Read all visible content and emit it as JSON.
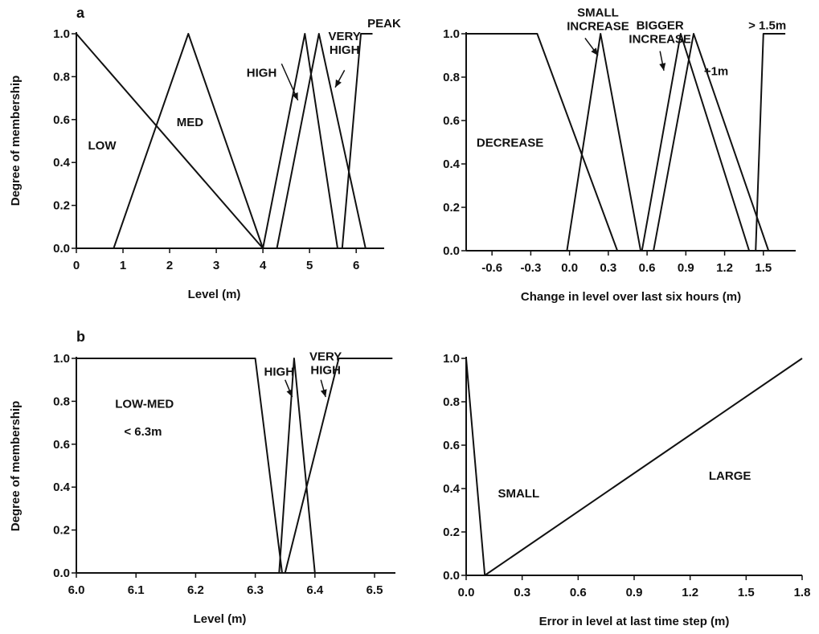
{
  "panel_labels": [
    "a",
    "b"
  ],
  "chart_data": [
    {
      "type": "line",
      "panel": "a",
      "xlabel": "Level (m)",
      "ylabel": "Degree of membership",
      "xlim": [
        0,
        6.6
      ],
      "ylim": [
        0,
        1.0
      ],
      "xticks": [
        0,
        1,
        2,
        3,
        4,
        5,
        6
      ],
      "xtick_labels": [
        "0",
        "1",
        "2",
        "3",
        "4",
        "5",
        "6"
      ],
      "yticks": [
        0,
        0.2,
        0.4,
        0.6,
        0.8,
        1.0
      ],
      "ytick_labels": [
        "0.0",
        "0.2",
        "0.4",
        "0.6",
        "0.8",
        "1.0"
      ],
      "series": [
        {
          "name": "LOW",
          "x": [
            0,
            4.0
          ],
          "y": [
            1.0,
            0.0
          ]
        },
        {
          "name": "MED",
          "x": [
            0.8,
            2.4,
            4.0
          ],
          "y": [
            0.0,
            1.0,
            0.0
          ]
        },
        {
          "name": "HIGH",
          "x": [
            4.0,
            4.9,
            5.6
          ],
          "y": [
            0.0,
            1.0,
            0.0
          ]
        },
        {
          "name": "VERY HIGH",
          "x": [
            4.3,
            5.2,
            6.2
          ],
          "y": [
            0.0,
            1.0,
            0.0
          ]
        },
        {
          "name": "PEAK",
          "x": [
            5.7,
            6.1,
            6.35
          ],
          "y": [
            0.0,
            1.0,
            1.0
          ]
        }
      ],
      "annotations": [
        {
          "lines": [
            "LOW"
          ],
          "x": 0.25,
          "y": 0.46,
          "anchor": "start"
        },
        {
          "lines": [
            "MED"
          ],
          "x": 2.15,
          "y": 0.57,
          "anchor": "start"
        },
        {
          "lines": [
            "HIGH"
          ],
          "x": 3.65,
          "y": 0.8,
          "anchor": "start"
        },
        {
          "lines": [
            "VERY",
            "HIGH"
          ],
          "x": 5.75,
          "y": 0.97,
          "anchor": "middle"
        },
        {
          "lines": [
            "PEAK"
          ],
          "x": 6.6,
          "y": 1.03,
          "anchor": "middle"
        }
      ],
      "arrows": [
        {
          "from": [
            4.4,
            0.86
          ],
          "to": [
            4.75,
            0.69
          ]
        },
        {
          "from": [
            5.75,
            0.83
          ],
          "to": [
            5.55,
            0.75
          ]
        }
      ]
    },
    {
      "type": "line",
      "panel": "a",
      "xlabel": "Change in level over last six hours  (m)",
      "ylabel": "",
      "xlim": [
        -0.8,
        1.75
      ],
      "ylim": [
        0,
        1.0
      ],
      "xticks": [
        -0.6,
        -0.3,
        0,
        0.3,
        0.6,
        0.9,
        1.2,
        1.5
      ],
      "xtick_labels": [
        "-0.6",
        "-0.3",
        "0.0",
        "0.3",
        "0.6",
        "0.9",
        "1.2",
        "1.5"
      ],
      "yticks": [
        0,
        0.2,
        0.4,
        0.6,
        0.8,
        1.0
      ],
      "ytick_labels": [
        "0.0",
        "0.2",
        "0.4",
        "0.6",
        "0.8",
        "1.0"
      ],
      "series": [
        {
          "name": "DECREASE",
          "x": [
            -0.8,
            -0.25,
            0.37
          ],
          "y": [
            1.0,
            1.0,
            0.0
          ]
        },
        {
          "name": "SMALL INCREASE",
          "x": [
            -0.02,
            0.24,
            0.55
          ],
          "y": [
            0.0,
            1.0,
            0.0
          ]
        },
        {
          "name": "BIGGER INCREASE",
          "x": [
            0.56,
            0.86,
            1.39
          ],
          "y": [
            0.0,
            1.0,
            0.0
          ]
        },
        {
          "name": "+1m",
          "x": [
            0.65,
            0.96,
            1.54
          ],
          "y": [
            0.0,
            1.0,
            0.0
          ]
        },
        {
          "name": "> 1.5m",
          "x": [
            1.44,
            1.5,
            1.67
          ],
          "y": [
            0.0,
            1.0,
            1.0
          ]
        }
      ],
      "annotations": [
        {
          "lines": [
            "SMALL",
            "INCREASE"
          ],
          "x": 0.22,
          "y": 1.08,
          "anchor": "middle"
        },
        {
          "lines": [
            "BIGGER",
            "INCREASE"
          ],
          "x": 0.7,
          "y": 1.02,
          "anchor": "middle"
        },
        {
          "lines": [
            "DECREASE"
          ],
          "x": -0.72,
          "y": 0.48,
          "anchor": "start"
        },
        {
          "lines": [
            "+1m"
          ],
          "x": 1.04,
          "y": 0.81,
          "anchor": "start"
        },
        {
          "lines": [
            "> 1.5m"
          ],
          "x": 1.53,
          "y": 1.02,
          "anchor": "middle"
        }
      ],
      "arrows": [
        {
          "from": [
            0.12,
            0.98
          ],
          "to": [
            0.22,
            0.9
          ]
        },
        {
          "from": [
            0.7,
            0.92
          ],
          "to": [
            0.73,
            0.83
          ]
        }
      ]
    },
    {
      "type": "line",
      "panel": "b",
      "xlabel": "Level (m)",
      "ylabel": "Degree of membership",
      "xlim": [
        6.0,
        6.535
      ],
      "ylim": [
        0,
        1.0
      ],
      "xticks": [
        6.0,
        6.1,
        6.2,
        6.3,
        6.4,
        6.5
      ],
      "xtick_labels": [
        "6.0",
        "6.1",
        "6.2",
        "6.3",
        "6.4",
        "6.5"
      ],
      "yticks": [
        0,
        0.2,
        0.4,
        0.6,
        0.8,
        1.0
      ],
      "ytick_labels": [
        "0.0",
        "0.2",
        "0.4",
        "0.6",
        "0.8",
        "1.0"
      ],
      "series": [
        {
          "name": "LOW-MED",
          "x": [
            6.0,
            6.3,
            6.345
          ],
          "y": [
            1.0,
            1.0,
            0.0
          ]
        },
        {
          "name": "HIGH",
          "x": [
            6.34,
            6.365,
            6.4
          ],
          "y": [
            0.0,
            1.0,
            0.0
          ]
        },
        {
          "name": "VERY HIGH",
          "x": [
            6.35,
            6.44,
            6.53
          ],
          "y": [
            0.0,
            1.0,
            1.0
          ]
        }
      ],
      "annotations": [
        {
          "lines": [
            "LOW-MED"
          ],
          "x": 6.065,
          "y": 0.77,
          "anchor": "start"
        },
        {
          "lines": [
            "< 6.3m"
          ],
          "x": 6.08,
          "y": 0.64,
          "anchor": "start"
        },
        {
          "lines": [
            "HIGH"
          ],
          "x": 6.34,
          "y": 0.92,
          "anchor": "middle"
        },
        {
          "lines": [
            "VERY",
            "HIGH"
          ],
          "x": 6.418,
          "y": 0.99,
          "anchor": "middle"
        }
      ],
      "arrows": [
        {
          "from": [
            6.35,
            0.9
          ],
          "to": [
            6.362,
            0.82
          ]
        },
        {
          "from": [
            6.41,
            0.9
          ],
          "to": [
            6.418,
            0.82
          ]
        }
      ]
    },
    {
      "type": "line",
      "panel": "b",
      "xlabel": "Error in level at last time step  (m)",
      "ylabel": "",
      "xlim": [
        0,
        1.8
      ],
      "ylim": [
        0,
        1.0
      ],
      "xticks": [
        0,
        0.3,
        0.6,
        0.9,
        1.2,
        1.5,
        1.8
      ],
      "xtick_labels": [
        "0.0",
        "0.3",
        "0.6",
        "0.9",
        "1.2",
        "1.5",
        "1.8"
      ],
      "yticks": [
        0,
        0.2,
        0.4,
        0.6,
        0.8,
        1.0
      ],
      "ytick_labels": [
        "0.0",
        "0.2",
        "0.4",
        "0.6",
        "0.8",
        "1.0"
      ],
      "series": [
        {
          "name": "SMALL",
          "x": [
            0,
            0.1
          ],
          "y": [
            1.0,
            0.0
          ]
        },
        {
          "name": "LARGE",
          "x": [
            0.1,
            1.8
          ],
          "y": [
            0.0,
            1.0
          ]
        }
      ],
      "annotations": [
        {
          "lines": [
            "SMALL"
          ],
          "x": 0.17,
          "y": 0.36,
          "anchor": "start"
        },
        {
          "lines": [
            "LARGE"
          ],
          "x": 1.3,
          "y": 0.44,
          "anchor": "start"
        }
      ],
      "arrows": []
    }
  ]
}
